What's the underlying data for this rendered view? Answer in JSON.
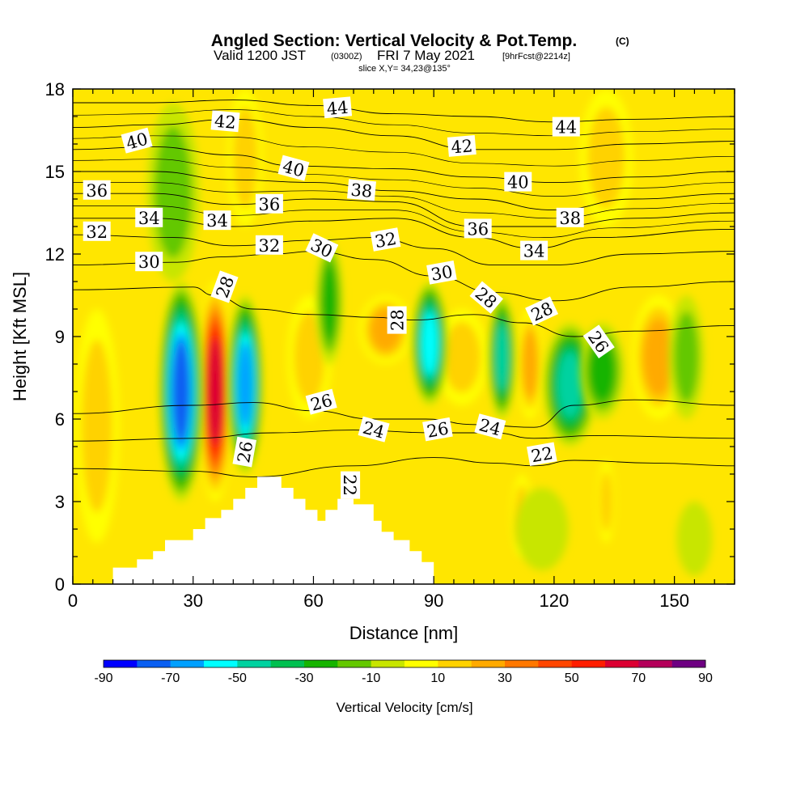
{
  "title": {
    "main": "Angled Section: Vertical Velocity & Pot.Temp.",
    "suffix": "(C)",
    "line2_a": "Valid 1200 JST",
    "line2_b": "(0300Z)",
    "line2_c": "FRI 7 May 2021",
    "line2_d": "[9hrFcst@2214z]",
    "line3": "slice X,Y= 34,23@135°"
  },
  "chart_data": {
    "type": "heatmap",
    "xlabel": "Distance [nm]",
    "ylabel": "Height [Kft MSL]",
    "xlim": [
      0,
      165
    ],
    "ylim": [
      0,
      18
    ],
    "x_ticks": [
      0,
      30,
      60,
      90,
      120,
      150
    ],
    "y_ticks": [
      0,
      3,
      6,
      9,
      12,
      15,
      18
    ],
    "colorbar": {
      "title": "Vertical Velocity [cm/s]",
      "tick_labels": [
        "-90",
        "-70",
        "-50",
        "-30",
        "-10",
        "10",
        "30",
        "50",
        "70",
        "90"
      ],
      "levels": [
        -90,
        -80,
        -70,
        -60,
        -50,
        -40,
        -30,
        -20,
        -10,
        0,
        10,
        20,
        30,
        40,
        50,
        60,
        70,
        80,
        90
      ],
      "colors": [
        "#0000ff",
        "#0a5ff2",
        "#00a0ff",
        "#00ffff",
        "#00d2a0",
        "#00c050",
        "#16b400",
        "#64c800",
        "#c8e600",
        "#ffff00",
        "#ffd200",
        "#ffaa00",
        "#ff7800",
        "#ff4600",
        "#ff1e00",
        "#dc0032",
        "#b4005a",
        "#6e0082"
      ]
    },
    "terrain_profile": [
      [
        0,
        0.3
      ],
      [
        10,
        0.3
      ],
      [
        10,
        0.6
      ],
      [
        16,
        0.6
      ],
      [
        16,
        0.9
      ],
      [
        20,
        0.9
      ],
      [
        20,
        1.2
      ],
      [
        23,
        1.2
      ],
      [
        23,
        1.6
      ],
      [
        30,
        1.6
      ],
      [
        30,
        2.0
      ],
      [
        33,
        2.0
      ],
      [
        33,
        2.4
      ],
      [
        37,
        2.4
      ],
      [
        37,
        2.7
      ],
      [
        40,
        2.7
      ],
      [
        40,
        3.1
      ],
      [
        43,
        3.1
      ],
      [
        43,
        3.5
      ],
      [
        46,
        3.5
      ],
      [
        46,
        3.9
      ],
      [
        52,
        3.9
      ],
      [
        52,
        3.5
      ],
      [
        55,
        3.5
      ],
      [
        55,
        3.1
      ],
      [
        58,
        3.1
      ],
      [
        58,
        2.7
      ],
      [
        61,
        2.7
      ],
      [
        61,
        2.3
      ],
      [
        63,
        2.3
      ],
      [
        63,
        2.7
      ],
      [
        66,
        2.7
      ],
      [
        66,
        3.1
      ],
      [
        70,
        3.1
      ],
      [
        70,
        2.9
      ],
      [
        75,
        2.9
      ],
      [
        75,
        2.3
      ],
      [
        77,
        2.3
      ],
      [
        77,
        1.9
      ],
      [
        80,
        1.9
      ],
      [
        80,
        1.6
      ],
      [
        84,
        1.6
      ],
      [
        84,
        1.2
      ],
      [
        87,
        1.2
      ],
      [
        87,
        0.8
      ],
      [
        90,
        0.8
      ],
      [
        90,
        0.3
      ],
      [
        165,
        0.3
      ]
    ],
    "updrafts": [
      {
        "x": 35.5,
        "y": 7.0,
        "w_cm_s": 75,
        "half_width_nm": 2.0,
        "y_span": [
          3.0,
          11.0
        ]
      },
      {
        "x": 6.0,
        "y": 5.5,
        "w_cm_s": 20,
        "half_width_nm": 2.5,
        "y_span": [
          1.5,
          10.0
        ]
      },
      {
        "x": 59.0,
        "y": 8.5,
        "w_cm_s": 25,
        "half_width_nm": 2.5,
        "y_span": [
          6.0,
          10.5
        ]
      },
      {
        "x": 78.0,
        "y": 9.3,
        "w_cm_s": 30,
        "half_width_nm": 3.0,
        "y_span": [
          8.0,
          10.5
        ]
      },
      {
        "x": 97.0,
        "y": 8.8,
        "w_cm_s": 22,
        "half_width_nm": 3.0,
        "y_span": [
          6.5,
          10.0
        ]
      },
      {
        "x": 114.0,
        "y": 8.0,
        "w_cm_s": 35,
        "half_width_nm": 1.5,
        "y_span": [
          6.0,
          10.0
        ]
      },
      {
        "x": 146.0,
        "y": 8.5,
        "w_cm_s": 30,
        "half_width_nm": 3.0,
        "y_span": [
          6.0,
          10.5
        ]
      },
      {
        "x": 133.0,
        "y": 16.0,
        "w_cm_s": 25,
        "half_width_nm": 3.0,
        "y_span": [
          13.0,
          18.0
        ]
      },
      {
        "x": 43.0,
        "y": 16.0,
        "w_cm_s": 20,
        "half_width_nm": 2.0,
        "y_span": [
          13.0,
          18.0
        ]
      },
      {
        "x": 112.0,
        "y": 2.5,
        "w_cm_s": 22,
        "half_width_nm": 1.2,
        "y_span": [
          1.0,
          4.0
        ]
      },
      {
        "x": 133.0,
        "y": 3.0,
        "w_cm_s": 22,
        "half_width_nm": 1.0,
        "y_span": [
          1.5,
          4.5
        ]
      }
    ],
    "downdrafts": [
      {
        "x": 27.0,
        "y": 7.0,
        "w_cm_s": -80,
        "half_width_nm": 2.5,
        "y_span": [
          3.0,
          11.0
        ]
      },
      {
        "x": 43.0,
        "y": 7.5,
        "w_cm_s": -75,
        "half_width_nm": 2.0,
        "y_span": [
          4.0,
          10.5
        ]
      },
      {
        "x": 89.0,
        "y": 9.0,
        "w_cm_s": -60,
        "half_width_nm": 2.0,
        "y_span": [
          6.5,
          11.0
        ]
      },
      {
        "x": 107.0,
        "y": 8.5,
        "w_cm_s": -55,
        "half_width_nm": 1.5,
        "y_span": [
          6.0,
          10.5
        ]
      },
      {
        "x": 124.0,
        "y": 7.5,
        "w_cm_s": -50,
        "half_width_nm": 3.0,
        "y_span": [
          5.0,
          9.5
        ]
      },
      {
        "x": 132.0,
        "y": 7.5,
        "w_cm_s": -35,
        "half_width_nm": 2.5,
        "y_span": [
          6.0,
          9.5
        ]
      },
      {
        "x": 64.0,
        "y": 10.0,
        "w_cm_s": -30,
        "half_width_nm": 1.5,
        "y_span": [
          8.0,
          12.5
        ]
      },
      {
        "x": 25.0,
        "y": 15.0,
        "w_cm_s": -25,
        "half_width_nm": 3.0,
        "y_span": [
          11.0,
          17.5
        ]
      },
      {
        "x": 153.0,
        "y": 8.5,
        "w_cm_s": -20,
        "half_width_nm": 2.0,
        "y_span": [
          6.0,
          10.5
        ]
      },
      {
        "x": 117.0,
        "y": 2.0,
        "w_cm_s": -15,
        "half_width_nm": 3.0,
        "y_span": [
          0.5,
          3.5
        ]
      },
      {
        "x": 155.0,
        "y": 1.5,
        "w_cm_s": -12,
        "half_width_nm": 2.0,
        "y_span": [
          0.3,
          3.0
        ]
      }
    ],
    "isentropes": [
      {
        "theta": 22,
        "points": [
          [
            0,
            4.2
          ],
          [
            30,
            4.1
          ],
          [
            45,
            3.9
          ],
          [
            70,
            4.3
          ],
          [
            90,
            4.6
          ],
          [
            105,
            4.4
          ],
          [
            115,
            4.3
          ],
          [
            125,
            4.5
          ],
          [
            145,
            4.4
          ],
          [
            165,
            4.3
          ]
        ]
      },
      {
        "theta": 24,
        "points": [
          [
            0,
            5.2
          ],
          [
            30,
            5.3
          ],
          [
            50,
            5.5
          ],
          [
            70,
            5.6
          ],
          [
            90,
            5.5
          ],
          [
            105,
            5.5
          ],
          [
            115,
            5.3
          ],
          [
            130,
            5.4
          ],
          [
            165,
            5.3
          ]
        ]
      },
      {
        "theta": 26,
        "points": [
          [
            0,
            6.2
          ],
          [
            30,
            6.5
          ],
          [
            45,
            6.6
          ],
          [
            60,
            6.3
          ],
          [
            75,
            6.0
          ],
          [
            88,
            6.0
          ],
          [
            100,
            5.8
          ],
          [
            115,
            5.7
          ],
          [
            125,
            6.5
          ],
          [
            140,
            6.7
          ],
          [
            165,
            6.5
          ]
        ]
      },
      {
        "theta": 28,
        "points": [
          [
            0,
            10.7
          ],
          [
            30,
            10.8
          ],
          [
            35,
            10.5
          ],
          [
            45,
            10.0
          ],
          [
            60,
            9.8
          ],
          [
            75,
            9.7
          ],
          [
            85,
            9.6
          ],
          [
            100,
            9.8
          ],
          [
            112,
            9.5
          ],
          [
            125,
            9.0
          ],
          [
            140,
            9.2
          ],
          [
            165,
            9.4
          ]
        ]
      },
      {
        "theta": 30,
        "points": [
          [
            0,
            11.6
          ],
          [
            25,
            11.7
          ],
          [
            38,
            11.9
          ],
          [
            50,
            12.0
          ],
          [
            60,
            12.1
          ],
          [
            75,
            11.8
          ],
          [
            90,
            11.2
          ],
          [
            105,
            10.6
          ],
          [
            120,
            10.3
          ],
          [
            140,
            10.8
          ],
          [
            165,
            11.0
          ]
        ]
      },
      {
        "theta": 32,
        "points": [
          [
            0,
            12.7
          ],
          [
            25,
            12.6
          ],
          [
            40,
            12.3
          ],
          [
            60,
            12.5
          ],
          [
            75,
            12.6
          ],
          [
            90,
            12.2
          ],
          [
            105,
            11.6
          ],
          [
            120,
            11.6
          ],
          [
            140,
            12.0
          ],
          [
            165,
            12.1
          ]
        ]
      },
      {
        "theta": 34,
        "points": [
          [
            0,
            13.3
          ],
          [
            20,
            13.3
          ],
          [
            40,
            13.0
          ],
          [
            60,
            13.2
          ],
          [
            80,
            13.3
          ],
          [
            100,
            12.6
          ],
          [
            115,
            12.2
          ],
          [
            130,
            12.6
          ],
          [
            165,
            12.9
          ]
        ]
      },
      {
        "theta": 36,
        "points": [
          [
            0,
            14.2
          ],
          [
            20,
            14.2
          ],
          [
            40,
            13.8
          ],
          [
            60,
            14.0
          ],
          [
            80,
            13.9
          ],
          [
            100,
            13.0
          ],
          [
            120,
            13.0
          ],
          [
            140,
            13.3
          ],
          [
            165,
            13.5
          ]
        ]
      },
      {
        "theta": 38,
        "points": [
          [
            0,
            15.0
          ],
          [
            20,
            15.0
          ],
          [
            40,
            14.7
          ],
          [
            60,
            14.6
          ],
          [
            80,
            14.3
          ],
          [
            100,
            14.0
          ],
          [
            120,
            13.6
          ],
          [
            140,
            14.0
          ],
          [
            165,
            14.2
          ]
        ]
      },
      {
        "theta": 40,
        "points": [
          [
            0,
            15.8
          ],
          [
            20,
            15.9
          ],
          [
            40,
            15.6
          ],
          [
            55,
            15.2
          ],
          [
            80,
            15.1
          ],
          [
            100,
            14.8
          ],
          [
            120,
            14.6
          ],
          [
            140,
            14.8
          ],
          [
            165,
            15.0
          ]
        ]
      },
      {
        "theta": 42,
        "points": [
          [
            0,
            16.6
          ],
          [
            20,
            16.7
          ],
          [
            40,
            16.9
          ],
          [
            60,
            16.6
          ],
          [
            80,
            16.3
          ],
          [
            100,
            15.8
          ],
          [
            120,
            15.8
          ],
          [
            140,
            16.0
          ],
          [
            165,
            16.1
          ]
        ]
      },
      {
        "theta": 44,
        "points": [
          [
            0,
            17.5
          ],
          [
            20,
            17.5
          ],
          [
            40,
            17.6
          ],
          [
            60,
            17.4
          ],
          [
            80,
            17.1
          ],
          [
            100,
            17.0
          ],
          [
            120,
            16.8
          ],
          [
            140,
            16.9
          ],
          [
            165,
            17.0
          ]
        ]
      }
    ],
    "contour_labels": [
      {
        "text": "44",
        "x": 66,
        "y": 17.3,
        "rot": -5
      },
      {
        "text": "42",
        "x": 38,
        "y": 16.8,
        "rot": 5
      },
      {
        "text": "44",
        "x": 123,
        "y": 16.6,
        "rot": 0
      },
      {
        "text": "40",
        "x": 16,
        "y": 16.1,
        "rot": -15
      },
      {
        "text": "42",
        "x": 97,
        "y": 15.9,
        "rot": -5
      },
      {
        "text": "40",
        "x": 55,
        "y": 15.1,
        "rot": 15
      },
      {
        "text": "40",
        "x": 111,
        "y": 14.6,
        "rot": 0
      },
      {
        "text": "36",
        "x": 6,
        "y": 14.3,
        "rot": 0
      },
      {
        "text": "38",
        "x": 72,
        "y": 14.3,
        "rot": 5
      },
      {
        "text": "36",
        "x": 49,
        "y": 13.8,
        "rot": 0
      },
      {
        "text": "34",
        "x": 19,
        "y": 13.3,
        "rot": 0
      },
      {
        "text": "38",
        "x": 124,
        "y": 13.3,
        "rot": 0
      },
      {
        "text": "34",
        "x": 36,
        "y": 13.2,
        "rot": 0
      },
      {
        "text": "36",
        "x": 101,
        "y": 12.9,
        "rot": 0
      },
      {
        "text": "32",
        "x": 6,
        "y": 12.8,
        "rot": 0
      },
      {
        "text": "32",
        "x": 49,
        "y": 12.3,
        "rot": 0
      },
      {
        "text": "32",
        "x": 78,
        "y": 12.5,
        "rot": -10
      },
      {
        "text": "30",
        "x": 62,
        "y": 12.2,
        "rot": 25
      },
      {
        "text": "34",
        "x": 115,
        "y": 12.1,
        "rot": 0
      },
      {
        "text": "30",
        "x": 19,
        "y": 11.7,
        "rot": 0
      },
      {
        "text": "30",
        "x": 92,
        "y": 11.3,
        "rot": -10
      },
      {
        "text": "28",
        "x": 38,
        "y": 10.8,
        "rot": -70
      },
      {
        "text": "28",
        "x": 103,
        "y": 10.4,
        "rot": 40
      },
      {
        "text": "28",
        "x": 117,
        "y": 9.9,
        "rot": -25
      },
      {
        "text": "28",
        "x": 81,
        "y": 9.6,
        "rot": -90
      },
      {
        "text": "26",
        "x": 131,
        "y": 8.8,
        "rot": 55
      },
      {
        "text": "26",
        "x": 62,
        "y": 6.6,
        "rot": -15
      },
      {
        "text": "24",
        "x": 75,
        "y": 5.6,
        "rot": 15
      },
      {
        "text": "26",
        "x": 91,
        "y": 5.6,
        "rot": -10
      },
      {
        "text": "24",
        "x": 104,
        "y": 5.7,
        "rot": 15
      },
      {
        "text": "22",
        "x": 117,
        "y": 4.7,
        "rot": -10
      },
      {
        "text": "26",
        "x": 43,
        "y": 4.8,
        "rot": -80
      },
      {
        "text": "22",
        "x": 69,
        "y": 3.6,
        "rot": 90
      }
    ]
  }
}
